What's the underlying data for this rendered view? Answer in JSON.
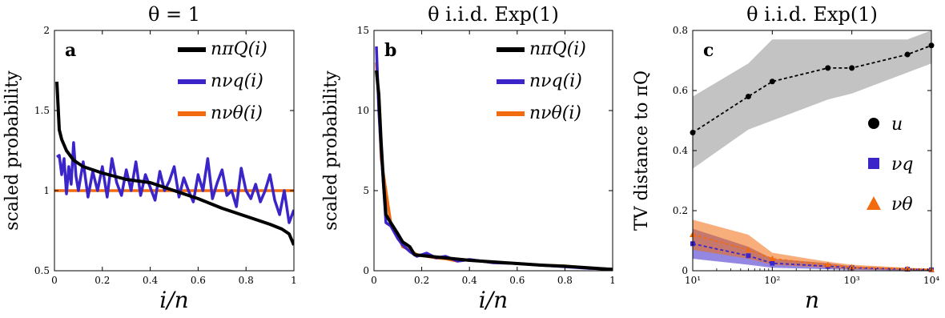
{
  "chart_data": [
    {
      "type": "line",
      "panel": "a",
      "title": "θ = 1",
      "xlabel": "i/n",
      "ylabel": "scaled probability",
      "xlim": [
        0,
        1
      ],
      "ylim": [
        0.5,
        2
      ],
      "xticks": [
        "0",
        "0.2",
        "0.4",
        "0.6",
        "0.8",
        "1"
      ],
      "yticks": [
        "0.5",
        "1",
        "1.5",
        "2"
      ],
      "legend_position": "top-right",
      "series": [
        {
          "name": "nπQ(i)",
          "color": "#000000",
          "x": [
            0.01,
            0.02,
            0.03,
            0.05,
            0.08,
            0.12,
            0.2,
            0.3,
            0.4,
            0.5,
            0.6,
            0.7,
            0.8,
            0.9,
            0.95,
            0.98,
            1.0
          ],
          "y": [
            1.68,
            1.38,
            1.32,
            1.25,
            1.19,
            1.15,
            1.11,
            1.07,
            1.05,
            1.0,
            0.95,
            0.89,
            0.84,
            0.79,
            0.76,
            0.73,
            0.66
          ]
        },
        {
          "name": "nνq(i)",
          "color": "#3b25c9",
          "x": [
            0.01,
            0.02,
            0.03,
            0.04,
            0.05,
            0.06,
            0.07,
            0.08,
            0.09,
            0.1,
            0.12,
            0.14,
            0.16,
            0.18,
            0.2,
            0.22,
            0.24,
            0.26,
            0.28,
            0.3,
            0.32,
            0.34,
            0.36,
            0.38,
            0.4,
            0.42,
            0.44,
            0.46,
            0.48,
            0.5,
            0.52,
            0.54,
            0.56,
            0.58,
            0.6,
            0.62,
            0.64,
            0.66,
            0.68,
            0.7,
            0.72,
            0.74,
            0.76,
            0.78,
            0.8,
            0.82,
            0.84,
            0.86,
            0.88,
            0.9,
            0.92,
            0.94,
            0.96,
            0.98,
            1.0
          ],
          "y": [
            1.21,
            1.22,
            1.1,
            1.2,
            0.98,
            1.15,
            1.04,
            1.3,
            1.09,
            1.0,
            1.18,
            0.96,
            1.12,
            1.0,
            1.15,
            0.96,
            1.2,
            1.05,
            0.97,
            1.13,
            1.0,
            1.18,
            0.97,
            1.1,
            1.02,
            0.94,
            1.12,
            1.0,
            1.06,
            1.15,
            0.96,
            1.08,
            1.0,
            0.93,
            1.1,
            1.0,
            1.2,
            0.95,
            1.05,
            1.13,
            0.97,
            1.0,
            0.9,
            1.14,
            1.0,
            0.95,
            1.04,
            0.93,
            1.0,
            1.1,
            0.94,
            0.85,
            1.0,
            0.8,
            0.88
          ]
        },
        {
          "name": "nνθ(i)",
          "color": "#f26b0f",
          "x": [
            0.0,
            1.0
          ],
          "y": [
            1.0,
            1.0
          ]
        }
      ]
    },
    {
      "type": "line",
      "panel": "b",
      "title": "θ i.i.d. Exp(1)",
      "xlabel": "i/n",
      "ylabel": "scaled probability",
      "xlim": [
        0,
        1
      ],
      "ylim": [
        0,
        15
      ],
      "xticks": [
        "0",
        "0.2",
        "0.4",
        "0.6",
        "0.8",
        "1"
      ],
      "yticks": [
        "0",
        "5",
        "10",
        "15"
      ],
      "legend_position": "top-right",
      "series": [
        {
          "name": "nπQ(i)",
          "color": "#000000",
          "x": [
            0.01,
            0.02,
            0.03,
            0.04,
            0.05,
            0.07,
            0.1,
            0.12,
            0.15,
            0.17,
            0.2,
            0.3,
            0.4,
            0.5,
            0.6,
            0.7,
            0.8,
            0.9,
            1.0
          ],
          "y": [
            12.5,
            11.0,
            8.0,
            5.5,
            3.5,
            3.0,
            2.3,
            1.8,
            1.5,
            1.0,
            0.95,
            0.8,
            0.65,
            0.55,
            0.45,
            0.35,
            0.28,
            0.18,
            0.08
          ]
        },
        {
          "name": "nνq(i)",
          "color": "#3b25c9",
          "x": [
            0.01,
            0.02,
            0.03,
            0.05,
            0.07,
            0.1,
            0.12,
            0.15,
            0.18,
            0.22,
            0.26,
            0.3,
            0.35,
            0.4,
            0.5,
            0.6,
            0.7,
            0.8,
            0.9,
            1.0
          ],
          "y": [
            14.0,
            10.0,
            7.5,
            3.0,
            2.8,
            2.0,
            1.6,
            1.2,
            0.9,
            1.1,
            0.8,
            0.9,
            0.6,
            0.7,
            0.5,
            0.45,
            0.35,
            0.25,
            0.15,
            0.1
          ]
        },
        {
          "name": "nνθ(i)",
          "color": "#f26b0f",
          "x": [
            0.01,
            0.02,
            0.03,
            0.05,
            0.07,
            0.1,
            0.12,
            0.15,
            0.18,
            0.22,
            0.26,
            0.3,
            0.35,
            0.4,
            0.5,
            0.6,
            0.7,
            0.8,
            0.9,
            1.0
          ],
          "y": [
            13.0,
            10.5,
            7.0,
            5.0,
            3.0,
            2.3,
            1.5,
            1.3,
            1.0,
            0.9,
            0.8,
            0.75,
            0.6,
            0.7,
            0.5,
            0.45,
            0.35,
            0.3,
            0.15,
            0.1
          ]
        }
      ]
    },
    {
      "type": "line",
      "panel": "c",
      "title": "θ i.i.d. Exp(1)",
      "xlabel": "n",
      "ylabel": "TV distance to πQ",
      "xscale": "log",
      "xlim": [
        10,
        10000
      ],
      "ylim": [
        0,
        0.8
      ],
      "xticks": [
        "10¹",
        "10²",
        "10³",
        "10⁴"
      ],
      "yticks": [
        "0",
        "0.2",
        "0.4",
        "0.6",
        "0.8"
      ],
      "legend_position": "right",
      "series": [
        {
          "name": "u",
          "color": "#000000",
          "marker": "circle",
          "x": [
            10,
            50,
            100,
            500,
            1000,
            5000,
            10000
          ],
          "y": [
            0.46,
            0.58,
            0.63,
            0.675,
            0.675,
            0.72,
            0.75
          ],
          "band_low": [
            0.34,
            0.47,
            0.5,
            0.57,
            0.59,
            0.66,
            0.69
          ],
          "band_high": [
            0.58,
            0.69,
            0.77,
            0.77,
            0.77,
            0.77,
            0.8
          ]
        },
        {
          "name": "νq",
          "color": "#3b25c9",
          "marker": "square",
          "x": [
            10,
            50,
            100,
            500,
            1000,
            5000,
            10000
          ],
          "y": [
            0.09,
            0.05,
            0.025,
            0.015,
            0.01,
            0.005,
            0.003
          ],
          "band_low": [
            0.04,
            0.02,
            0.01,
            0.005,
            0.003,
            0.001,
            0.001
          ],
          "band_high": [
            0.14,
            0.08,
            0.04,
            0.025,
            0.015,
            0.008,
            0.006
          ]
        },
        {
          "name": "νθ",
          "color": "#f26b0f",
          "marker": "triangle",
          "x": [
            10,
            50,
            100,
            500,
            1000,
            5000,
            10000
          ],
          "y": [
            0.12,
            0.07,
            0.04,
            0.02,
            0.012,
            0.006,
            0.004
          ],
          "band_low": [
            0.07,
            0.04,
            0.02,
            0.01,
            0.005,
            0.002,
            0.001
          ],
          "band_high": [
            0.17,
            0.12,
            0.06,
            0.03,
            0.02,
            0.01,
            0.007
          ]
        }
      ]
    }
  ]
}
